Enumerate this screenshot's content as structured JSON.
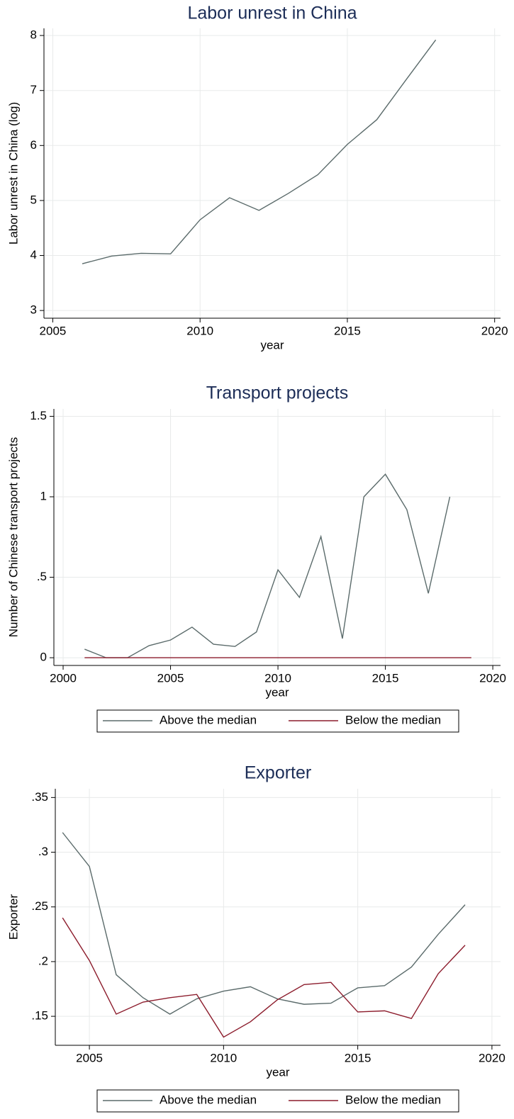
{
  "chart_data": [
    {
      "type": "line",
      "title": "Labor unrest in China",
      "xlabel": "year",
      "ylabel": "Labor unrest in China (log)",
      "x": [
        2006,
        2007,
        2008,
        2009,
        2010,
        2011,
        2012,
        2013,
        2014,
        2015,
        2016,
        2017,
        2018
      ],
      "values": [
        3.85,
        3.99,
        4.04,
        4.03,
        4.65,
        5.05,
        4.82,
        5.13,
        5.47,
        6.02,
        6.47,
        7.2,
        7.92
      ],
      "color": "#5b6b6b",
      "xlim": [
        2004.7,
        2020.2
      ],
      "xticks": [
        2005,
        2010,
        2015,
        2020
      ],
      "ylim": [
        2.86,
        8.13
      ],
      "yticks": [
        3,
        4,
        5,
        6,
        7,
        8
      ],
      "grid": true
    },
    {
      "type": "line",
      "title": "Transport projects",
      "xlabel": "year",
      "ylabel": "Number of Chinese transport projects",
      "x": [
        2001,
        2002,
        2003,
        2004,
        2005,
        2006,
        2007,
        2008,
        2009,
        2010,
        2011,
        2012,
        2013,
        2014,
        2015,
        2016,
        2017,
        2018,
        2019
      ],
      "series": [
        {
          "name": "Above the median",
          "color": "#5b6b6b",
          "values": [
            0.053,
            0,
            0,
            0.075,
            0.11,
            0.19,
            0.084,
            0.07,
            0.16,
            0.546,
            0.375,
            0.753,
            0.119,
            1.0,
            1.14,
            0.92,
            0.4,
            1.0,
            null
          ]
        },
        {
          "name": "Below the median",
          "color": "#8c1c2c",
          "values": [
            0,
            0,
            0,
            0,
            0,
            0,
            0,
            0,
            0,
            0,
            0,
            0,
            0,
            0,
            0,
            0,
            0,
            0,
            0
          ]
        }
      ],
      "xlim": [
        1999.57,
        2020.36
      ],
      "xticks": [
        2000,
        2005,
        2010,
        2015,
        2020
      ],
      "ylim": [
        -0.048,
        1.546
      ],
      "yticks": [
        0,
        {
          "value": 0.5,
          "label": ".5"
        },
        1,
        1.5
      ],
      "grid": true,
      "legend": "bottom"
    },
    {
      "type": "line",
      "title": "Exporter",
      "xlabel": "year",
      "ylabel": "Exporter",
      "x": [
        2004,
        2005,
        2006,
        2007,
        2008,
        2009,
        2010,
        2011,
        2012,
        2013,
        2014,
        2015,
        2016,
        2017,
        2018,
        2019
      ],
      "series": [
        {
          "name": "Above the median",
          "color": "#5b6b6b",
          "values": [
            0.318,
            0.287,
            0.188,
            0.167,
            0.152,
            0.166,
            0.173,
            0.177,
            0.166,
            0.161,
            0.162,
            0.176,
            0.178,
            0.195,
            0.225,
            0.252
          ]
        },
        {
          "name": "Below the median",
          "color": "#8c1c2c",
          "values": [
            0.24,
            0.201,
            0.152,
            0.163,
            0.167,
            0.17,
            0.131,
            0.145,
            0.165,
            0.179,
            0.181,
            0.154,
            0.155,
            0.148,
            0.189,
            0.215
          ]
        }
      ],
      "xlim": [
        2003.73,
        2020.32
      ],
      "xticks": [
        2005,
        2010,
        2015,
        2020
      ],
      "ylim": [
        0.1235,
        0.358
      ],
      "yticks": [
        {
          "value": 0.15,
          "label": ".15"
        },
        {
          "value": 0.2,
          "label": ".2"
        },
        {
          "value": 0.25,
          "label": ".25"
        },
        {
          "value": 0.3,
          "label": ".3"
        },
        {
          "value": 0.35,
          "label": ".35"
        }
      ],
      "grid": true,
      "legend": "bottom"
    }
  ]
}
